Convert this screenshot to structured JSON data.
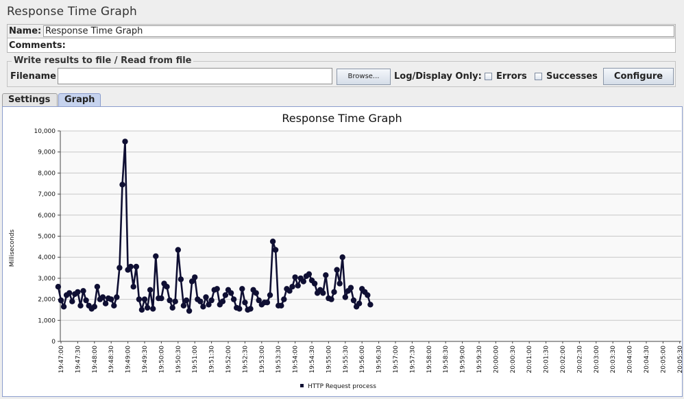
{
  "window": {
    "title": "Response Time Graph"
  },
  "form": {
    "name_label": "Name:",
    "name_value": "Response Time Graph",
    "comments_label": "Comments:"
  },
  "file": {
    "legend": "Write results to file / Read from file",
    "filename_label": "Filename",
    "filename_value": "",
    "browse_label": "Browse...",
    "log_display_label": "Log/Display Only:",
    "errors_label": "Errors",
    "successes_label": "Successes",
    "configure_label": "Configure",
    "errors_checked": false,
    "successes_checked": false
  },
  "tabs": [
    {
      "label": "Settings",
      "active": false
    },
    {
      "label": "Graph",
      "active": true
    }
  ],
  "colors": {
    "line": "#0f0f33",
    "grid": "#c8c8c8",
    "tab_active": "#c6d3ee"
  },
  "chart_data": {
    "type": "line",
    "title": "Response Time Graph",
    "ylabel": "Milliseconds",
    "xlabel": "",
    "ylim": [
      0,
      10000
    ],
    "y_ticks": [
      "0",
      "1,000",
      "2,000",
      "3,000",
      "4,000",
      "5,000",
      "6,000",
      "7,000",
      "8,000",
      "9,000",
      "10,000"
    ],
    "x_ticks": [
      "19:47:00",
      "19:47:30",
      "19:48:00",
      "19:48:30",
      "19:49:00",
      "19:49:30",
      "19:50:00",
      "19:50:30",
      "19:51:00",
      "19:51:30",
      "19:52:00",
      "19:52:30",
      "19:53:00",
      "19:53:30",
      "19:54:00",
      "19:54:30",
      "19:55:00",
      "19:55:30",
      "19:56:00",
      "19:56:30",
      "19:57:00",
      "19:57:30",
      "19:58:00",
      "19:58:30",
      "19:59:00",
      "19:59:30",
      "20:00:00",
      "20:00:30",
      "20:01:00",
      "20:01:30",
      "20:02:00",
      "20:02:30",
      "20:03:00",
      "20:03:30",
      "20:04:00",
      "20:04:30",
      "20:05:00",
      "20:05:30"
    ],
    "x_start": "19:46:55",
    "x_interval_s": 5,
    "legend": "bottom",
    "grid": true,
    "series": [
      {
        "name": "HTTP Request process",
        "values": [
          2600,
          1950,
          1650,
          2200,
          2300,
          1900,
          2250,
          2350,
          1700,
          2400,
          1950,
          1700,
          1550,
          1650,
          2600,
          2000,
          2100,
          1800,
          2050,
          2000,
          1700,
          2100,
          3500,
          7450,
          9500,
          3400,
          3550,
          2600,
          3550,
          2000,
          1500,
          2000,
          1600,
          2450,
          1550,
          4050,
          2050,
          2050,
          2750,
          2600,
          1950,
          1600,
          1900,
          4350,
          2950,
          1700,
          1950,
          1450,
          2850,
          3050,
          2000,
          1900,
          1650,
          2100,
          1750,
          1950,
          2450,
          2500,
          1750,
          1900,
          2200,
          2450,
          2300,
          2000,
          1600,
          1550,
          2500,
          1850,
          1500,
          1550,
          2450,
          2300,
          1950,
          1750,
          1850,
          1850,
          2200,
          4750,
          4350,
          1700,
          1700,
          2000,
          2500,
          2400,
          2600,
          3050,
          2650,
          3000,
          2850,
          3100,
          3200,
          2900,
          2750,
          2300,
          2450,
          2300,
          3150,
          2050,
          2000,
          2350,
          3400,
          2750,
          4000,
          2100,
          2400,
          2550,
          1950,
          1650,
          1800,
          2500,
          2350,
          2200,
          1750
        ]
      }
    ]
  }
}
